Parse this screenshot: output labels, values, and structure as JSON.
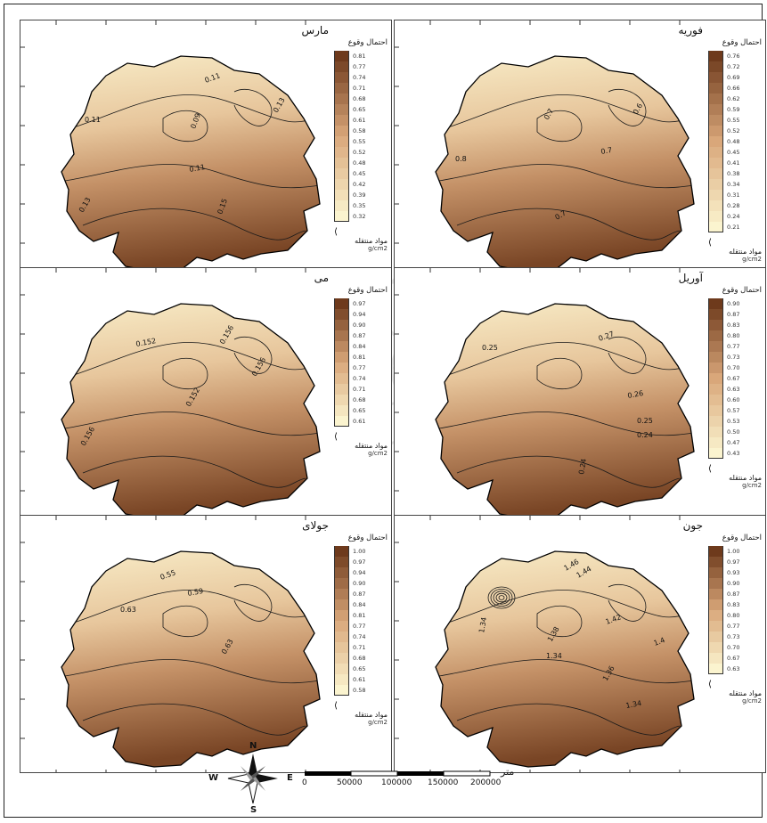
{
  "panels": [
    {
      "title": "مارس",
      "legend_title": "احتمال وقوع",
      "unit_title": "مواد منتقله",
      "unit": "g/cm2",
      "legend_values": [
        "0.81",
        "0.77",
        "0.74",
        "0.71",
        "0.68",
        "0.65",
        "0.61",
        "0.58",
        "0.55",
        "0.52",
        "0.48",
        "0.45",
        "0.42",
        "0.39",
        "0.35",
        "0.32"
      ],
      "contour_labels": [
        "0.11",
        "0.13",
        "0.11",
        "0.09",
        "0.11",
        "0.13",
        "0.15"
      ]
    },
    {
      "title": "فوريه",
      "legend_title": "احتمال وقوع",
      "unit_title": "مواد منتقله",
      "unit": "g/cm2",
      "legend_values": [
        "0.76",
        "0.72",
        "0.69",
        "0.66",
        "0.62",
        "0.59",
        "0.55",
        "0.52",
        "0.48",
        "0.45",
        "0.41",
        "0.38",
        "0.34",
        "0.31",
        "0.28",
        "0.24",
        "0.21"
      ],
      "contour_labels": [
        "0.7",
        "0.6",
        "0.7",
        "0.8",
        "0.7"
      ]
    },
    {
      "title": "مى",
      "legend_title": "احتمال وقوع",
      "unit_title": "مواد منتقله",
      "unit": "g/cm2",
      "legend_values": [
        "0.97",
        "0.94",
        "0.90",
        "0.87",
        "0.84",
        "0.81",
        "0.77",
        "0.74",
        "0.71",
        "0.68",
        "0.65",
        "0.61"
      ],
      "contour_labels": [
        "0.152",
        "0.156",
        "0.156",
        "0.152",
        "0.156"
      ]
    },
    {
      "title": "آوريل",
      "legend_title": "احتمال وقوع",
      "unit_title": "مواد منتقله",
      "unit": "g/cm2",
      "legend_values": [
        "0.90",
        "0.87",
        "0.83",
        "0.80",
        "0.77",
        "0.73",
        "0.70",
        "0.67",
        "0.63",
        "0.60",
        "0.57",
        "0.53",
        "0.50",
        "0.47",
        "0.43"
      ],
      "contour_labels": [
        "0.25",
        "0.27",
        "0.26",
        "0.25",
        "0.24",
        "0.24"
      ]
    },
    {
      "title": "جولاى",
      "legend_title": "احتمال وقوع",
      "unit_title": "مواد منتقله",
      "unit": "g/cm2",
      "legend_values": [
        "1.00",
        "0.97",
        "0.94",
        "0.90",
        "0.87",
        "0.84",
        "0.81",
        "0.77",
        "0.74",
        "0.71",
        "0.68",
        "0.65",
        "0.61",
        "0.58"
      ],
      "contour_labels": [
        "0.55",
        "0.59",
        "0.63",
        "0.63"
      ]
    },
    {
      "title": "جون",
      "legend_title": "احتمال وقوع",
      "unit_title": "مواد منتقله",
      "unit": "g/cm2",
      "legend_values": [
        "1.00",
        "0.97",
        "0.93",
        "0.90",
        "0.87",
        "0.83",
        "0.80",
        "0.77",
        "0.73",
        "0.70",
        "0.67",
        "0.63"
      ],
      "contour_labels": [
        "1.46",
        "1.44",
        "1.42",
        "1.34",
        "1.38",
        "1.4",
        "1.34",
        "1.36",
        "1.34"
      ]
    }
  ],
  "scale_bar": {
    "unit_label": "متر",
    "ticks": [
      "0",
      "50000",
      "100000",
      "150000",
      "200000"
    ]
  },
  "compass": {
    "n": "N",
    "s": "S",
    "e": "E",
    "w": "W"
  },
  "colors": {
    "low": "#fbf4cf",
    "mid": "#d9a77a",
    "high": "#6e3a1c",
    "contour": "#1a1a1a",
    "outline": "#000000"
  }
}
